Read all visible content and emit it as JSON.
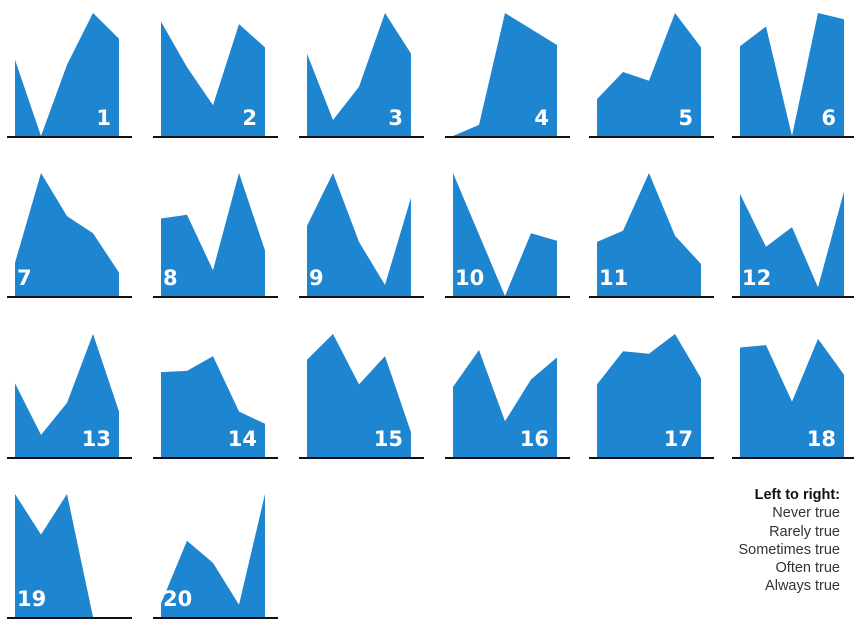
{
  "chart_data": {
    "type": "area",
    "categories": [
      "Never true",
      "Rarely true",
      "Sometimes true",
      "Often true",
      "Always true"
    ],
    "ylim": [
      0,
      1
    ],
    "charts": [
      {
        "label": "1",
        "values": [
          0.62,
          0.0,
          0.58,
          1.0,
          0.79
        ]
      },
      {
        "label": "2",
        "values": [
          0.93,
          0.56,
          0.25,
          0.91,
          0.72
        ]
      },
      {
        "label": "3",
        "values": [
          0.67,
          0.13,
          0.4,
          1.0,
          0.67
        ]
      },
      {
        "label": "4",
        "values": [
          0.0,
          0.09,
          1.0,
          0.87,
          0.74
        ]
      },
      {
        "label": "5",
        "values": [
          0.3,
          0.52,
          0.45,
          1.0,
          0.72
        ]
      },
      {
        "label": "6",
        "values": [
          0.73,
          0.89,
          0.0,
          1.0,
          0.95
        ]
      },
      {
        "label": "7",
        "values": [
          0.27,
          1.0,
          0.65,
          0.51,
          0.19
        ]
      },
      {
        "label": "8",
        "values": [
          0.63,
          0.66,
          0.21,
          1.0,
          0.37
        ]
      },
      {
        "label": "9",
        "values": [
          0.57,
          1.0,
          0.44,
          0.09,
          0.8
        ]
      },
      {
        "label": "10",
        "values": [
          1.0,
          0.5,
          0.0,
          0.51,
          0.45
        ]
      },
      {
        "label": "11",
        "values": [
          0.44,
          0.53,
          1.0,
          0.49,
          0.26
        ]
      },
      {
        "label": "12",
        "values": [
          0.83,
          0.4,
          0.56,
          0.07,
          0.85
        ]
      },
      {
        "label": "13",
        "values": [
          0.6,
          0.18,
          0.44,
          1.0,
          0.37
        ]
      },
      {
        "label": "14",
        "values": [
          0.69,
          0.7,
          0.82,
          0.37,
          0.27
        ]
      },
      {
        "label": "15",
        "values": [
          0.79,
          1.0,
          0.59,
          0.82,
          0.2
        ]
      },
      {
        "label": "16",
        "values": [
          0.57,
          0.87,
          0.29,
          0.63,
          0.81
        ]
      },
      {
        "label": "17",
        "values": [
          0.59,
          0.86,
          0.84,
          1.0,
          0.64
        ]
      },
      {
        "label": "18",
        "values": [
          0.89,
          0.91,
          0.45,
          0.96,
          0.67
        ]
      },
      {
        "label": "19",
        "values": [
          1.0,
          0.67,
          1.0,
          0.0,
          0.0
        ]
      },
      {
        "label": "20",
        "values": [
          0.11,
          0.62,
          0.44,
          0.1,
          1.0
        ]
      }
    ]
  },
  "legend": {
    "title": "Left to right:",
    "items": [
      "Never true",
      "Rarely true",
      "Sometimes true",
      "Often true",
      "Always true"
    ]
  },
  "colors": {
    "fill": "#1e85d1",
    "baseline": "#111111",
    "label": "#ffffff"
  }
}
